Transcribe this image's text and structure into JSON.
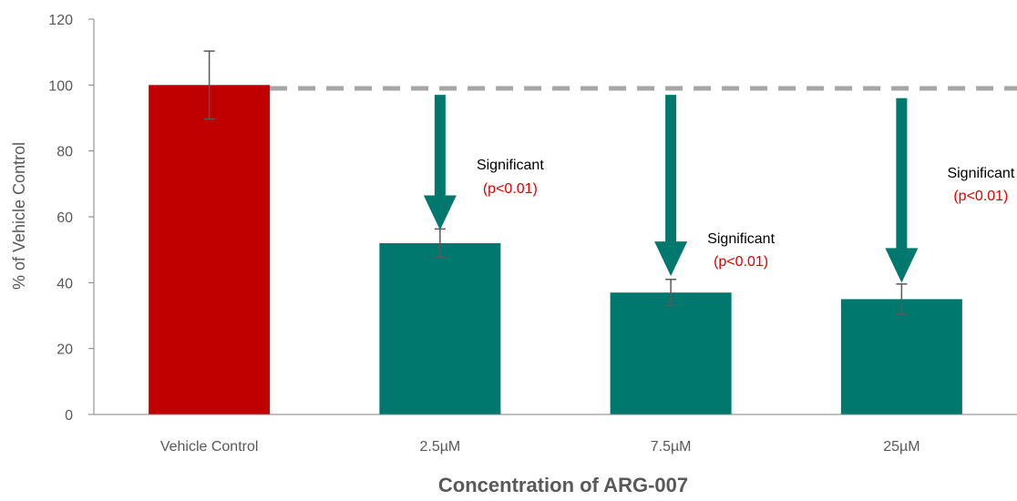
{
  "chart_data": {
    "type": "bar",
    "categories": [
      "Vehicle Control",
      "2.5µM",
      "7.5µM",
      "25µM"
    ],
    "values": [
      100,
      52,
      37,
      35
    ],
    "errors": [
      10.3,
      4.3,
      4.0,
      4.6
    ],
    "bar_colors": [
      "#c00000",
      "#00786e",
      "#00786e",
      "#00786e"
    ],
    "ylabel": "% of Vehicle Control",
    "xlabel": "Concentration of ARG-007",
    "ylim": [
      0,
      120
    ],
    "yticks": [
      0,
      20,
      40,
      60,
      80,
      100,
      120
    ],
    "reference_line": {
      "value": 99,
      "style": "dashed",
      "color": "#a6a6a6"
    },
    "arrow_color": "#00786e",
    "annotations": [
      {
        "category": "2.5µM",
        "label": "Significant",
        "p_value": "(p<0.01)",
        "arrow_from": 97,
        "arrow_to": 56
      },
      {
        "category": "7.5µM",
        "label": "Significant",
        "p_value": "(p<0.01)",
        "arrow_from": 97,
        "arrow_to": 42
      },
      {
        "category": "25µM",
        "label": "Significant",
        "p_value": "(p<0.01)",
        "arrow_from": 96,
        "arrow_to": 40
      }
    ],
    "grid": false,
    "legend": "none"
  }
}
